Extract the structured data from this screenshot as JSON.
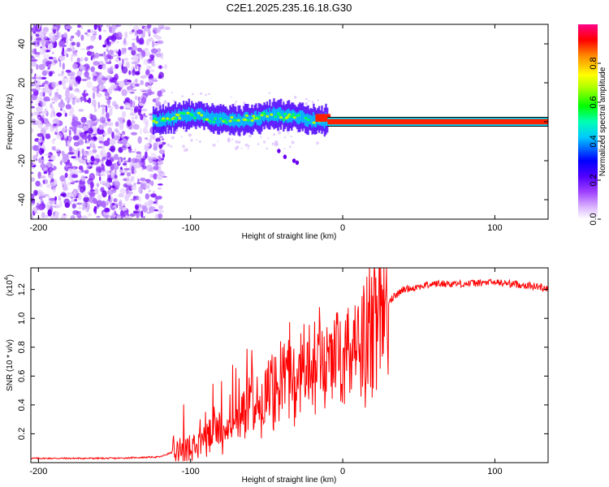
{
  "title": "C2E1.2025.235.16.18.G30",
  "chart_data": [
    {
      "type": "heatmap",
      "name": "spectrogram",
      "xlabel": "Height of straight line (km)",
      "ylabel": "Frequency (Hz)",
      "xlim": [
        -205,
        135
      ],
      "ylim": [
        -50,
        50
      ],
      "xticks": [
        -200,
        -100,
        0,
        100
      ],
      "yticks": [
        -40,
        -20,
        0,
        20,
        40
      ],
      "colorbar": {
        "label": "Normalized spectral amplitude",
        "range": [
          0,
          1
        ],
        "ticks": [
          0.0,
          0.2,
          0.4,
          0.6,
          0.8
        ],
        "colors": [
          "#ffffff",
          "#cc88ff",
          "#8a00ff",
          "#0000ff",
          "#00ffff",
          "#00ff00",
          "#ffff00",
          "#ff8800",
          "#ff0000",
          "#ff00aa"
        ]
      },
      "regions": [
        {
          "x_range": [
            -205,
            -115
          ],
          "freq_range": [
            -50,
            50
          ],
          "amplitude": "low (0.1-0.3)",
          "note": "scattered purple blobs"
        },
        {
          "x_range": [
            -125,
            -10
          ],
          "freq_center": 2,
          "freq_width": 8,
          "amplitude": "0.3-0.6"
        },
        {
          "x_range": [
            -10,
            135
          ],
          "freq_center": 0,
          "freq_width": 3,
          "amplitude": "0.9-1.0"
        }
      ]
    },
    {
      "type": "line",
      "name": "snr",
      "xlabel": "Height of straight line (km)",
      "ylabel": "SNR (10 * v/v)",
      "yscale_label": "(x10",
      "yscale_exponent": "4",
      "yscale_suffix": ")",
      "xlim": [
        -205,
        135
      ],
      "ylim": [
        0,
        1.35
      ],
      "xticks": [
        -200,
        -100,
        0,
        100
      ],
      "yticks": [
        0.2,
        0.4,
        0.6,
        0.8,
        1.0,
        1.2
      ],
      "series": [
        {
          "name": "SNR",
          "color": "#ff0000",
          "x": [
            -205,
            -180,
            -150,
            -120,
            -110,
            -100,
            -90,
            -80,
            -70,
            -60,
            -50,
            -40,
            -30,
            -20,
            -10,
            0,
            10,
            20,
            30,
            40,
            60,
            80,
            100,
            120,
            135
          ],
          "y": [
            0.03,
            0.03,
            0.03,
            0.04,
            0.08,
            0.14,
            0.18,
            0.25,
            0.31,
            0.38,
            0.44,
            0.52,
            0.6,
            0.66,
            0.73,
            0.78,
            0.86,
            0.98,
            1.12,
            1.2,
            1.24,
            1.24,
            1.25,
            1.23,
            1.21
          ]
        }
      ]
    }
  ]
}
